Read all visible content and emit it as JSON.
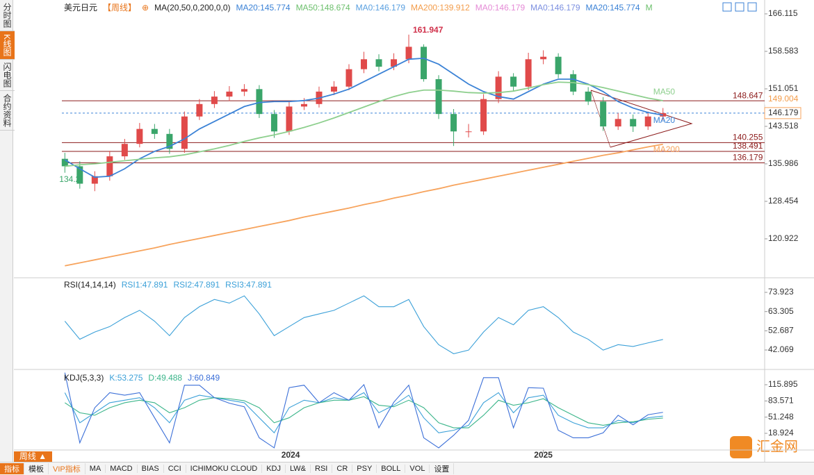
{
  "sidebar": {
    "tabs": [
      "分时图",
      "K线图",
      "闪电图",
      "合约资料"
    ],
    "active": 1
  },
  "toolbar": {
    "period": "周线 ▲",
    "items": [
      "指标",
      "模板",
      "VIP指标",
      "MA",
      "MACD",
      "BIAS",
      "CCI",
      "ICHIMOKU CLOUD",
      "KDJ",
      "LW&",
      "RSI",
      "CR",
      "PSY",
      "BOLL",
      "VOL",
      "设置"
    ]
  },
  "logo": "汇金网",
  "chart_data": [
    {
      "type": "candlestick",
      "xlim": [
        -0.2,
        46.8
      ],
      "ylim": [
        113.1,
        168.9
      ],
      "yticks": [
        166.115,
        158.583,
        151.051,
        143.518,
        135.986,
        128.454,
        120.922
      ],
      "legend": [
        {
          "text": "美元日元",
          "color": "#222"
        },
        {
          "text": "【周线】",
          "color": "#e8741a"
        },
        {
          "text": "⊕",
          "color": "#e8741a"
        },
        {
          "text": "MA(20,50,0,200,0,0)",
          "color": "#222"
        },
        {
          "text": "MA20:145.774",
          "color": "#3b82d6"
        },
        {
          "text": "MA50:148.674",
          "color": "#6cbf6c"
        },
        {
          "text": "MA0:146.179",
          "color": "#5aa0e0"
        },
        {
          "text": "MA200:139.912",
          "color": "#f39c4a"
        },
        {
          "text": "MA0:146.179",
          "color": "#e58ad6"
        },
        {
          "text": "MA0:146.179",
          "color": "#7b8fe0"
        },
        {
          "text": "MA20:145.774",
          "color": "#3b82d6"
        },
        {
          "text": "M",
          "color": "#6cbf6c"
        }
      ],
      "up_color": "#e04a4a",
      "down_color": "#3aa56a",
      "open": [
        137,
        135.5,
        132,
        133.5,
        137.5,
        140,
        143,
        142,
        139,
        145.5,
        148,
        149.5,
        150.5,
        151,
        146,
        142.5,
        147.5,
        148,
        150.5,
        151.5,
        155,
        157,
        155.5,
        157,
        159.5,
        153,
        146,
        142.5,
        142.5,
        149,
        153.5,
        151.5,
        157,
        157.5,
        154,
        150.5,
        148.5,
        143.5,
        145,
        143.5,
        145.5
      ],
      "high": [
        138.2,
        136.5,
        134.5,
        138.6,
        141,
        144.2,
        144,
        143,
        146.5,
        149,
        150.6,
        151.6,
        152,
        151.8,
        146.8,
        148.5,
        149.2,
        151.5,
        152.6,
        156,
        158.5,
        158,
        158.2,
        161.947,
        160,
        153.8,
        147,
        144,
        150,
        154.6,
        154.2,
        158.3,
        158.8,
        158.2,
        154.8,
        151.4,
        149.4,
        146.2,
        145.9,
        146.5,
        147.2
      ],
      "low": [
        134.2,
        131,
        130.5,
        132.6,
        136.8,
        139.3,
        141,
        138,
        138.2,
        144.8,
        147.2,
        148.6,
        149.6,
        145.2,
        141.2,
        141.8,
        146.8,
        147.3,
        149.8,
        150.8,
        154.2,
        154.6,
        154.8,
        156.2,
        152.5,
        145,
        139.573,
        141.3,
        141.8,
        148.2,
        150.6,
        150.8,
        156,
        153.2,
        149.8,
        147.8,
        142.6,
        142.8,
        142.4,
        142.8,
        144.8
      ],
      "close": [
        135.5,
        132,
        133.5,
        137.5,
        140,
        143,
        142,
        139,
        145.5,
        148,
        149.5,
        150.5,
        151,
        146,
        142.5,
        147.5,
        148,
        150.5,
        151.5,
        155,
        157,
        155.5,
        157,
        159.5,
        153,
        146,
        142.5,
        142.5,
        149,
        153.5,
        151.5,
        157,
        157.5,
        154,
        150.5,
        148.5,
        143.5,
        145,
        143.5,
        145.5,
        146.179
      ],
      "series": [
        {
          "name": "MA20",
          "color": "#3b82d6",
          "values": [
            136.8,
            135,
            133.3,
            133.5,
            135,
            137,
            138.5,
            139.5,
            141,
            143,
            144.5,
            146,
            147.5,
            148.3,
            148.5,
            148.5,
            148.7,
            149.2,
            150,
            151,
            152.5,
            154,
            155.5,
            157,
            157.2,
            156,
            154,
            152,
            150.5,
            149.5,
            149,
            150.5,
            152,
            153,
            153,
            152,
            150.5,
            148.5,
            147.2,
            146.3,
            145.774
          ]
        },
        {
          "name": "MA50",
          "color": "#8dcf8d",
          "values": [
            135.5,
            135.8,
            136,
            136.3,
            136.6,
            136.9,
            137.2,
            137.4,
            137.8,
            138.4,
            139,
            139.7,
            140.5,
            141.2,
            141.8,
            142.5,
            143.3,
            144.2,
            145.2,
            146.3,
            147.4,
            148.5,
            149.5,
            150.3,
            150.8,
            150.8,
            150.6,
            150.3,
            150.2,
            150.3,
            150.6,
            151.2,
            151.9,
            152.4,
            152.3,
            151.9,
            151.3,
            150.6,
            149.9,
            149.2,
            148.674
          ]
        },
        {
          "name": "MA200",
          "color": "#f7a35c",
          "values": [
            115.5,
            116.1,
            116.7,
            117.3,
            117.9,
            118.5,
            119.1,
            119.8,
            120.4,
            121,
            121.6,
            122.2,
            122.8,
            123.4,
            124,
            124.6,
            125.3,
            125.9,
            126.5,
            127.1,
            127.8,
            128.4,
            129.1,
            129.7,
            130.4,
            131,
            131.7,
            132.3,
            132.9,
            133.5,
            134.1,
            134.7,
            135.3,
            135.9,
            136.5,
            137.1,
            137.7,
            138.2,
            138.8,
            139.4,
            139.912
          ]
        }
      ],
      "levels": [
        148.647,
        140.255,
        138.491,
        136.179
      ],
      "level_color": "#8b1a1a",
      "last_price": 146.179,
      "tag": 149.004
    },
    {
      "type": "line",
      "xlim": [
        -0.2,
        46.8
      ],
      "ylim": [
        31.32,
        81.22
      ],
      "yticks": [
        73.923,
        63.305,
        52.687,
        42.069
      ],
      "legend": [
        {
          "text": "RSI(14,14,14)",
          "color": "#222"
        },
        {
          "text": "RSI1:47.891",
          "color": "#3ba0d8"
        },
        {
          "text": "RSI2:47.891",
          "color": "#3ba0d8"
        },
        {
          "text": "RSI3:47.891",
          "color": "#3ba0d8"
        }
      ],
      "series": [
        {
          "name": "RSI1",
          "color": "#3ba0d8",
          "values": [
            58,
            48,
            52,
            55,
            60,
            64,
            58,
            50,
            60,
            66,
            70,
            68,
            72,
            62,
            50,
            55,
            60,
            62,
            64,
            68,
            72,
            66,
            66,
            70,
            55,
            45,
            40,
            42,
            52,
            60,
            56,
            64,
            66,
            60,
            52,
            48,
            42,
            45,
            44,
            46,
            47.891
          ]
        }
      ]
    },
    {
      "type": "line",
      "xlim": [
        -0.2,
        46.8
      ],
      "ylim": [
        -14.3,
        143.6
      ],
      "yticks": [
        115.895,
        83.571,
        51.248,
        18.924
      ],
      "legend": [
        {
          "text": "KDJ(5,3,3)",
          "color": "#222"
        },
        {
          "text": "K:53.275",
          "color": "#3ba0d8"
        },
        {
          "text": "D:49.488",
          "color": "#3bb58a"
        },
        {
          "text": "J:60.849",
          "color": "#3b6fd8"
        }
      ],
      "series": [
        {
          "name": "K",
          "color": "#3ba0d8",
          "values": [
            100,
            40,
            60,
            80,
            85,
            90,
            70,
            40,
            85,
            95,
            90,
            85,
            80,
            50,
            20,
            70,
            85,
            80,
            90,
            85,
            100,
            60,
            75,
            95,
            50,
            20,
            25,
            35,
            80,
            100,
            60,
            90,
            95,
            55,
            40,
            30,
            30,
            45,
            40,
            50,
            53.275
          ]
        },
        {
          "name": "D",
          "color": "#3bb58a",
          "values": [
            80,
            60,
            55,
            70,
            80,
            85,
            80,
            60,
            70,
            85,
            90,
            88,
            84,
            70,
            40,
            50,
            70,
            80,
            85,
            85,
            92,
            75,
            72,
            85,
            70,
            40,
            30,
            30,
            55,
            85,
            75,
            80,
            88,
            70,
            55,
            40,
            35,
            40,
            42,
            47,
            49.488
          ]
        },
        {
          "name": "J",
          "color": "#3b6fd8",
          "values": [
            140,
            0,
            70,
            100,
            95,
            100,
            50,
            0,
            115,
            115,
            90,
            79,
            72,
            10,
            -10,
            110,
            115,
            80,
            100,
            85,
            116,
            30,
            81,
            115,
            10,
            -10,
            15,
            45,
            130,
            130,
            30,
            110,
            109,
            25,
            10,
            10,
            20,
            55,
            36,
            56,
            60.849
          ]
        }
      ],
      "xticks": [
        {
          "value": 15.1,
          "label": "2024"
        },
        {
          "value": 32,
          "label": "2025"
        }
      ]
    }
  ]
}
